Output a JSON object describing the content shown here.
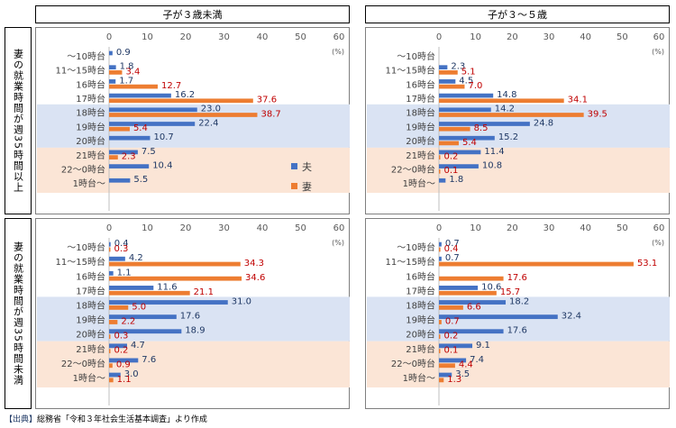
{
  "column_headers": [
    "子が３歳未満",
    "子が３～５歳"
  ],
  "row_headers": [
    "妻の就業時間が週35時間以上",
    "妻の就業時間が週35時間未満"
  ],
  "unit_label": "(%)",
  "legend": {
    "husband": "夫",
    "wife": "妻"
  },
  "colors": {
    "husband": "#4472c4",
    "wife": "#ed7d31",
    "husband_text": "#1f3864",
    "wife_text": "#c00000",
    "band_blue": "#dae3f3",
    "band_pink": "#fbe5d6"
  },
  "footer": {
    "tag": "【出典】",
    "text": "総務省「令和３年社会生活基本調査」より作成"
  },
  "chart_data": [
    {
      "type": "bar",
      "title": "子が３歳未満 / 妻の就業時間が週35時間以上",
      "categories": [
        "～10時台",
        "11～15時台",
        "16時台",
        "17時台",
        "18時台",
        "19時台",
        "20時台",
        "21時台",
        "22～0時台",
        "1時台～"
      ],
      "series": [
        {
          "name": "夫",
          "values": [
            0.9,
            1.8,
            1.7,
            16.2,
            23.0,
            22.4,
            10.7,
            7.5,
            10.4,
            5.5
          ]
        },
        {
          "name": "妻",
          "values": [
            null,
            3.4,
            12.7,
            37.6,
            38.7,
            5.4,
            null,
            2.3,
            null,
            null
          ]
        }
      ],
      "xlim": [
        0,
        60
      ],
      "xticks": [
        "0",
        "10",
        "20",
        "30",
        "40",
        "50",
        "60"
      ],
      "show_legend": true
    },
    {
      "type": "bar",
      "title": "子が３～５歳 / 妻の就業時間が週35時間以上",
      "categories": [
        "～10時台",
        "11～15時台",
        "16時台",
        "17時台",
        "18時台",
        "19時台",
        "20時台",
        "21時台",
        "22～0時台",
        "1時台～"
      ],
      "series": [
        {
          "name": "夫",
          "values": [
            null,
            2.3,
            4.5,
            14.8,
            14.2,
            24.8,
            15.2,
            11.4,
            10.8,
            1.8
          ]
        },
        {
          "name": "妻",
          "values": [
            null,
            5.1,
            7.0,
            34.1,
            39.5,
            8.5,
            5.4,
            0.2,
            0.1,
            null
          ]
        }
      ],
      "xlim": [
        0,
        60
      ],
      "xticks": [
        "0",
        "10",
        "20",
        "30",
        "40",
        "50",
        "60"
      ],
      "show_legend": false
    },
    {
      "type": "bar",
      "title": "子が３歳未満 / 妻の就業時間が週35時間未満",
      "categories": [
        "～10時台",
        "11～15時台",
        "16時台",
        "17時台",
        "18時台",
        "19時台",
        "20時台",
        "21時台",
        "22～0時台",
        "1時台～"
      ],
      "series": [
        {
          "name": "夫",
          "values": [
            0.4,
            4.2,
            1.1,
            11.6,
            31.0,
            17.6,
            18.9,
            4.7,
            7.6,
            3.0
          ]
        },
        {
          "name": "妻",
          "values": [
            0.3,
            34.3,
            34.6,
            21.1,
            5.0,
            2.2,
            0.3,
            0.2,
            0.9,
            1.1
          ]
        }
      ],
      "xlim": [
        0,
        60
      ],
      "xticks": [
        "0",
        "10",
        "20",
        "30",
        "40",
        "50",
        "60"
      ],
      "show_legend": false
    },
    {
      "type": "bar",
      "title": "子が３～５歳 / 妻の就業時間が週35時間未満",
      "categories": [
        "～10時台",
        "11～15時台",
        "16時台",
        "17時台",
        "18時台",
        "19時台",
        "20時台",
        "21時台",
        "22～0時台",
        "1時台～"
      ],
      "series": [
        {
          "name": "夫",
          "values": [
            0.7,
            0.7,
            null,
            10.6,
            18.2,
            32.4,
            17.6,
            9.1,
            7.4,
            3.5
          ]
        },
        {
          "name": "妻",
          "values": [
            0.4,
            53.1,
            17.6,
            15.7,
            6.6,
            0.7,
            0.2,
            0.1,
            4.4,
            1.3
          ]
        }
      ],
      "xlim": [
        0,
        60
      ],
      "xticks": [
        "0",
        "10",
        "20",
        "30",
        "40",
        "50",
        "60"
      ],
      "show_legend": false
    }
  ]
}
